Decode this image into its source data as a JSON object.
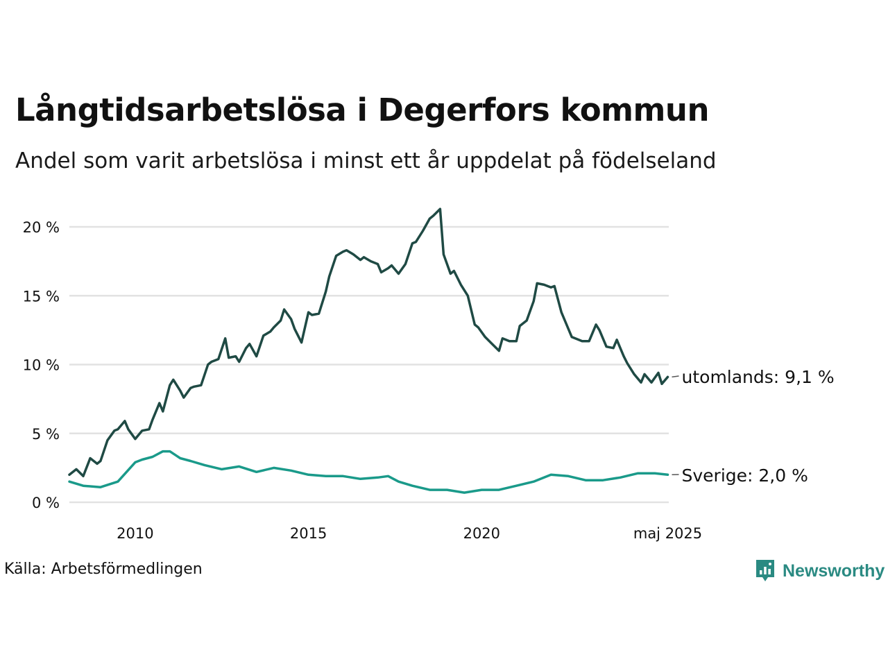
{
  "header": {
    "title": "Långtidsarbetslösa i Degerfors kommun",
    "subtitle": "Andel som varit arbetslösa i minst ett år uppdelat på födelseland"
  },
  "footer": {
    "source": "Källa: Arbetsförmedlingen",
    "brand": "Newsworthy"
  },
  "colors": {
    "utomlands": "#1f4a44",
    "sverige": "#1a9a8a",
    "grid": "#e2e2e2",
    "brand": "#2a8a82"
  },
  "chart_data": {
    "type": "line",
    "title": "Långtidsarbetslösa i Degerfors kommun",
    "subtitle": "Andel som varit arbetslösa i minst ett år uppdelat på födelseland",
    "x_ticks": [
      {
        "x": 2010,
        "label": "2010"
      },
      {
        "x": 2015,
        "label": "2015"
      },
      {
        "x": 2020,
        "label": "2020"
      },
      {
        "x": 2025.37,
        "label": "maj 2025"
      }
    ],
    "y_ticks": [
      {
        "y": 0,
        "label": "0 %"
      },
      {
        "y": 5,
        "label": "5 %"
      },
      {
        "y": 10,
        "label": "10 %"
      },
      {
        "y": 15,
        "label": "15 %"
      },
      {
        "y": 20,
        "label": "20 %"
      }
    ],
    "xlim": [
      2008.1,
      2025.4
    ],
    "ylim": [
      0,
      22
    ],
    "grid": true,
    "series": [
      {
        "name": "utomlands",
        "end_label": "utomlands: 9,1 %",
        "x": [
          2008.1,
          2008.3,
          2008.5,
          2008.7,
          2008.9,
          2009.0,
          2009.2,
          2009.4,
          2009.5,
          2009.7,
          2009.8,
          2010.0,
          2010.2,
          2010.4,
          2010.5,
          2010.7,
          2010.8,
          2011.0,
          2011.1,
          2011.3,
          2011.4,
          2011.6,
          2011.7,
          2011.9,
          2012.1,
          2012.2,
          2012.4,
          2012.6,
          2012.7,
          2012.9,
          2013.0,
          2013.2,
          2013.3,
          2013.5,
          2013.7,
          2013.9,
          2014.0,
          2014.2,
          2014.3,
          2014.5,
          2014.6,
          2014.8,
          2015.0,
          2015.1,
          2015.3,
          2015.5,
          2015.6,
          2015.8,
          2016.0,
          2016.1,
          2016.3,
          2016.5,
          2016.6,
          2016.8,
          2017.0,
          2017.1,
          2017.3,
          2017.4,
          2017.6,
          2017.8,
          2018.0,
          2018.1,
          2018.3,
          2018.5,
          2018.6,
          2018.8,
          2018.9,
          2019.1,
          2019.2,
          2019.4,
          2019.6,
          2019.8,
          2019.9,
          2020.1,
          2020.3,
          2020.5,
          2020.6,
          2020.8,
          2021.0,
          2021.1,
          2021.3,
          2021.5,
          2021.6,
          2021.8,
          2022.0,
          2022.1,
          2022.3,
          2022.4,
          2022.6,
          2022.8,
          2022.9,
          2023.1,
          2023.3,
          2023.4,
          2023.6,
          2023.8,
          2023.9,
          2024.1,
          2024.2,
          2024.4,
          2024.6,
          2024.7,
          2024.9,
          2025.1,
          2025.2,
          2025.37
        ],
        "values": [
          2.0,
          2.4,
          1.9,
          3.2,
          2.8,
          3.0,
          4.5,
          5.2,
          5.3,
          5.9,
          5.3,
          4.6,
          5.2,
          5.3,
          6.0,
          7.2,
          6.6,
          8.5,
          8.9,
          8.1,
          7.6,
          8.3,
          8.4,
          8.5,
          10.0,
          10.2,
          10.4,
          11.9,
          10.5,
          10.6,
          10.2,
          11.2,
          11.5,
          10.6,
          12.1,
          12.4,
          12.7,
          13.2,
          14.0,
          13.3,
          12.6,
          11.6,
          13.8,
          13.6,
          13.7,
          15.3,
          16.4,
          17.9,
          18.2,
          18.3,
          18.0,
          17.6,
          17.8,
          17.5,
          17.3,
          16.7,
          17.0,
          17.2,
          16.6,
          17.3,
          18.8,
          18.9,
          19.7,
          20.6,
          20.8,
          21.3,
          18.0,
          16.6,
          16.8,
          15.8,
          15.0,
          12.9,
          12.7,
          12.0,
          11.5,
          11.0,
          11.9,
          11.7,
          11.7,
          12.8,
          13.2,
          14.6,
          15.9,
          15.8,
          15.6,
          15.7,
          13.8,
          13.2,
          12.0,
          11.8,
          11.7,
          11.7,
          12.9,
          12.5,
          11.3,
          11.2,
          11.8,
          10.6,
          10.1,
          9.3,
          8.7,
          9.3,
          8.7,
          9.4,
          8.6,
          9.1
        ]
      },
      {
        "name": "Sverige",
        "end_label": "Sverige: 2,0 %",
        "x": [
          2008.1,
          2008.5,
          2009.0,
          2009.5,
          2010.0,
          2010.2,
          2010.5,
          2010.8,
          2011.0,
          2011.3,
          2011.6,
          2012.0,
          2012.5,
          2013.0,
          2013.5,
          2014.0,
          2014.5,
          2015.0,
          2015.5,
          2016.0,
          2016.5,
          2017.0,
          2017.3,
          2017.6,
          2018.0,
          2018.5,
          2019.0,
          2019.5,
          2020.0,
          2020.5,
          2021.0,
          2021.5,
          2022.0,
          2022.5,
          2023.0,
          2023.5,
          2024.0,
          2024.5,
          2025.0,
          2025.37
        ],
        "values": [
          1.5,
          1.2,
          1.1,
          1.5,
          2.9,
          3.1,
          3.3,
          3.7,
          3.7,
          3.2,
          3.0,
          2.7,
          2.4,
          2.6,
          2.2,
          2.5,
          2.3,
          2.0,
          1.9,
          1.9,
          1.7,
          1.8,
          1.9,
          1.5,
          1.2,
          0.9,
          0.9,
          0.7,
          0.9,
          0.9,
          1.2,
          1.5,
          2.0,
          1.9,
          1.6,
          1.6,
          1.8,
          2.1,
          2.1,
          2.0
        ]
      }
    ]
  }
}
